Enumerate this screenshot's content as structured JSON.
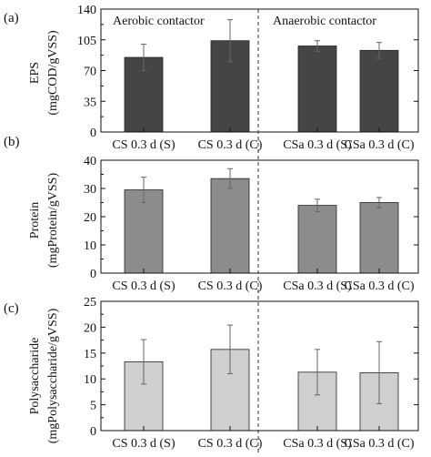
{
  "chart_data": [
    {
      "type": "bar",
      "panel_label": "(a)",
      "ylabel_line1": "EPS",
      "ylabel_line2": "(mgCOD/gVSS)",
      "ylim": [
        0,
        140
      ],
      "yticks": [
        0,
        35,
        70,
        105,
        140
      ],
      "categories": [
        "CS 0.3 d (S)",
        "CS 0.3 d (C)",
        "CSa 0.3 d (S)",
        "CSa 0.3 d (C)"
      ],
      "values": [
        85,
        104,
        98,
        93
      ],
      "errors": [
        15,
        24,
        6,
        9
      ],
      "bar_color": "#454545",
      "annotations": [
        "Aerobic contactor",
        "Anaerobic contactor"
      ]
    },
    {
      "type": "bar",
      "panel_label": "(b)",
      "ylabel_line1": "Protein",
      "ylabel_line2": "(mgProtein/gVSS)",
      "ylim": [
        0,
        40
      ],
      "yticks": [
        0,
        10,
        20,
        30,
        40
      ],
      "categories": [
        "CS 0.3 d (S)",
        "CS 0.3 d (C)",
        "CSa 0.3 d (S)",
        "CSa 0.3 d (C)"
      ],
      "values": [
        29.5,
        33.5,
        24,
        25
      ],
      "errors": [
        4.5,
        3.5,
        2.2,
        1.8
      ],
      "bar_color": "#8c8c8c"
    },
    {
      "type": "bar",
      "panel_label": "(c)",
      "ylabel_line1": "Polysaccharide",
      "ylabel_line2": "(mgPolysaccharide/gVSS)",
      "ylim": [
        0,
        25
      ],
      "yticks": [
        0,
        5,
        10,
        15,
        20,
        25
      ],
      "categories": [
        "CS 0.3 d (S)",
        "CS 0.3 d (C)",
        "CSa 0.3 d (S)",
        "CSa 0.3 d (C)"
      ],
      "values": [
        13.3,
        15.7,
        11.3,
        11.2
      ],
      "errors": [
        4.3,
        4.7,
        4.4,
        6.0
      ],
      "bar_color": "#cfcfcf"
    }
  ],
  "colors": {
    "axis": "#111111",
    "divider": "#333333",
    "error_bar": "#666666"
  }
}
